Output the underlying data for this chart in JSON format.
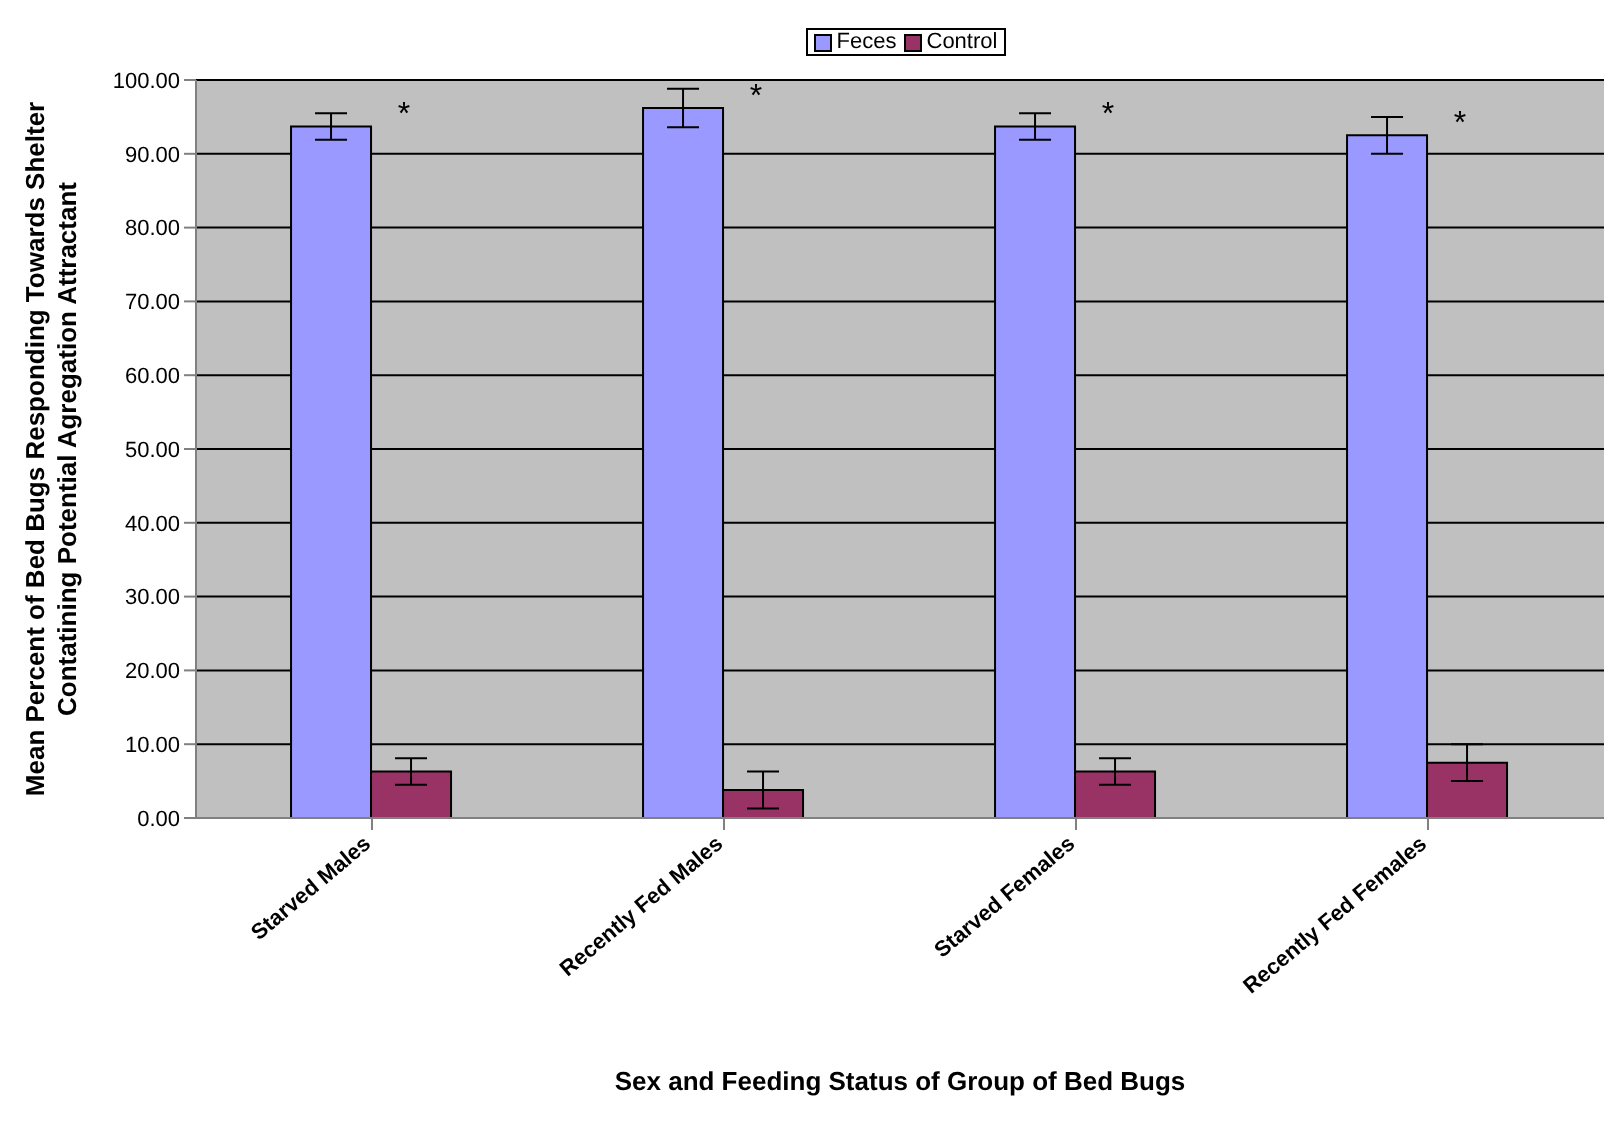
{
  "chart_data": {
    "type": "bar",
    "xlabel": "Sex and Feeding Status of Group of Bed Bugs",
    "ylabel": "Mean Percent of Bed Bugs Responding Towards Shelter Contatining Potential Agregation Attractant",
    "categories": [
      "Starved Males",
      "Recently Fed Males",
      "Starved Females",
      "Recently Fed Females"
    ],
    "series": [
      {
        "name": "Feces",
        "color": "#9999ff",
        "values": [
          93.7,
          96.2,
          93.7,
          92.5
        ],
        "errors": [
          1.8,
          2.6,
          1.8,
          2.5
        ]
      },
      {
        "name": "Control",
        "color": "#993366",
        "values": [
          6.3,
          3.8,
          6.3,
          7.5
        ],
        "errors": [
          1.8,
          2.5,
          1.8,
          2.5
        ]
      }
    ],
    "ylim": [
      0,
      100
    ],
    "yticks": [
      {
        "value": 0,
        "label": "0.00"
      },
      {
        "value": 10,
        "label": "10.00"
      },
      {
        "value": 20,
        "label": "20.00"
      },
      {
        "value": 30,
        "label": "30.00"
      },
      {
        "value": 40,
        "label": "40.00"
      },
      {
        "value": 50,
        "label": "50.00"
      },
      {
        "value": 60,
        "label": "60.00"
      },
      {
        "value": 70,
        "label": "70.00"
      },
      {
        "value": 80,
        "label": "80.00"
      },
      {
        "value": 90,
        "label": "90.00"
      },
      {
        "value": 100,
        "label": "100.00"
      }
    ],
    "annotations": [
      {
        "text": "*",
        "x": "Starved Males",
        "y": 93.7
      },
      {
        "text": "*",
        "x": "Recently Fed Males",
        "y": 96.2
      },
      {
        "text": "*",
        "x": "Starved Females",
        "y": 93.7
      },
      {
        "text": "*",
        "x": "Recently Fed Females",
        "y": 92.5
      }
    ],
    "grid": "y",
    "legend": "top"
  }
}
